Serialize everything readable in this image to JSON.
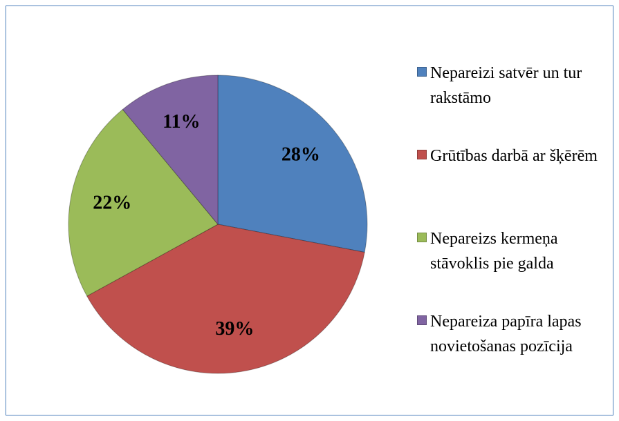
{
  "chart_data": {
    "type": "pie",
    "categories": [
      "Nepareizi satvēr un tur rakstāmo",
      "Grūtības darbā ar šķērēm",
      "Nepareizs kermeņa stāvoklis pie galda",
      "Nepareiza papīra lapas novietošanas pozīcija"
    ],
    "values": [
      28,
      39,
      22,
      11
    ],
    "value_labels": [
      "28%",
      "39%",
      "22%",
      "11%"
    ],
    "colors": [
      "#4f81bd",
      "#c0504d",
      "#9bbb59",
      "#8064a2"
    ],
    "legend": "right"
  }
}
